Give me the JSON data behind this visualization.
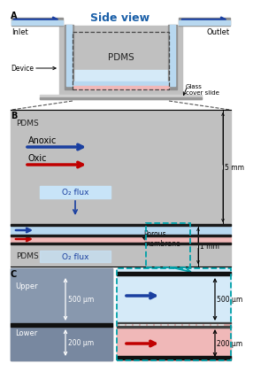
{
  "title": "Side view",
  "title_color": "#1a5fa8",
  "panel_A_label": "A",
  "panel_B_label": "B",
  "panel_C_label": "C",
  "label_inlet": "Inlet",
  "label_outlet": "Outlet",
  "label_device": "Device",
  "label_pdms": "PDMS",
  "label_glass": "Glass\ncover slide",
  "label_anoxic": "Anoxic",
  "label_oxic": "Oxic",
  "label_o2flux": "O₂ flux",
  "label_porous": "Porous\nmembrane",
  "label_5mm": "5 mm",
  "label_1mm": "1 mm",
  "label_upper": "Upper",
  "label_lower": "Lower",
  "label_500um": "500 μm",
  "label_200um": "200 μm",
  "bg_color": "#ffffff",
  "pdms_color": "#c0c0c0",
  "blue_channel_color": "#b8d8f0",
  "blue_channel_light": "#d5eaf8",
  "pink_channel_color": "#f0b8b8",
  "light_blue_box": "#c8e4f8",
  "arrow_blue": "#1a3fa0",
  "arrow_red": "#c00000",
  "teal_box": "#00a0a8",
  "dark_line": "#1a1a1a",
  "glass_color": "#b8b8b8",
  "tube_gray": "#909090",
  "micro_bg": "#6a7a8a",
  "micro_upper": "#8090a8",
  "micro_lower": "#7888a0"
}
